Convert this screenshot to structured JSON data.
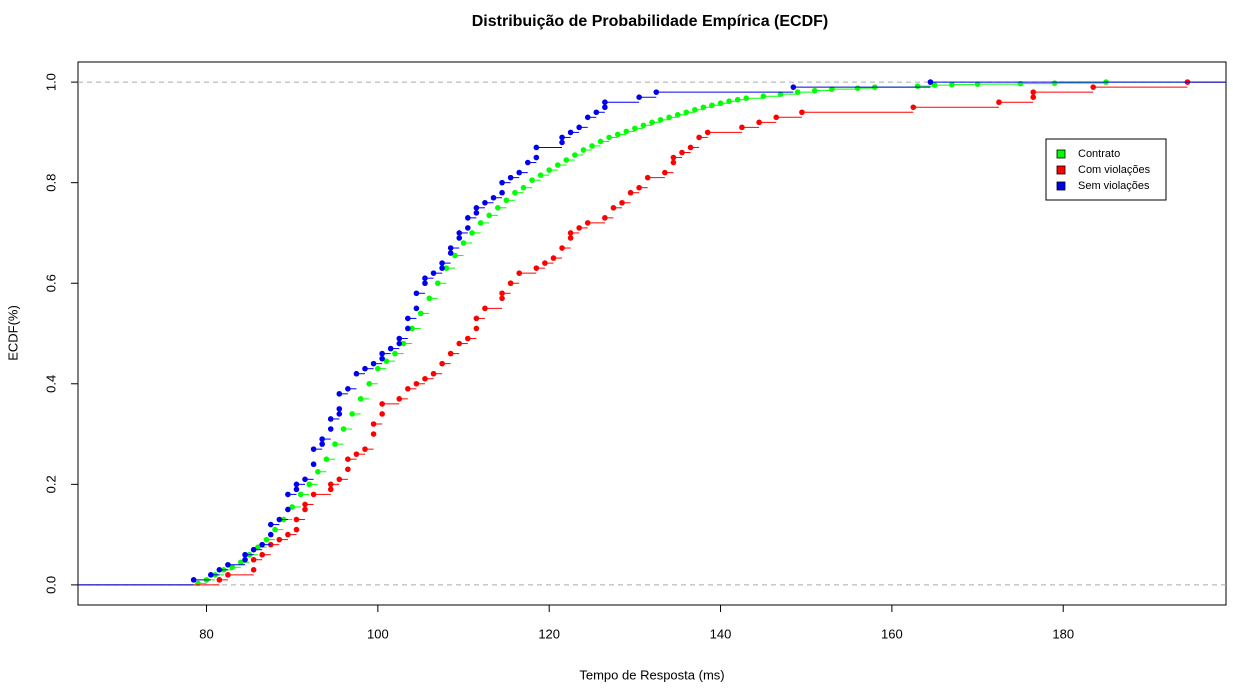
{
  "chart_data": {
    "type": "ecdf",
    "title": "Distribuição de Probabilidade Empírica (ECDF)",
    "x_label": "Tempo de Resposta (ms)",
    "y_label": "ECDF(%)",
    "xlim": [
      65,
      199
    ],
    "ylim": [
      -0.04,
      1.04
    ],
    "xticks": [
      80,
      100,
      120,
      140,
      160,
      180
    ],
    "yticks": [
      {
        "value": 0,
        "label": "0.0"
      },
      {
        "value": 0.2,
        "label": "0.2"
      },
      {
        "value": 0.4,
        "label": "0.4"
      },
      {
        "value": 0.6,
        "label": "0.6"
      },
      {
        "value": 0.8,
        "label": "0.8"
      },
      {
        "value": 1,
        "label": "1.0"
      }
    ],
    "series": [
      {
        "name": "Contrato",
        "color": "#00ff00",
        "x": [
          79,
          80,
          81,
          82,
          83,
          84,
          85,
          86,
          87,
          88,
          89,
          90,
          91,
          92,
          93,
          94,
          95,
          96,
          97,
          98,
          99,
          100,
          101,
          102,
          103,
          104,
          105,
          106,
          107,
          108,
          109,
          110,
          111,
          112,
          113,
          114,
          115,
          116,
          117,
          118,
          119,
          120,
          121,
          122,
          123,
          124,
          125,
          126,
          127,
          128,
          129,
          130,
          131,
          132,
          133,
          134,
          135,
          136,
          137,
          138,
          139,
          140,
          141,
          142,
          143,
          145,
          147,
          149,
          151,
          153,
          156,
          158,
          163,
          165,
          167,
          170,
          175,
          179,
          185
        ],
        "values": [
          0.003,
          0.01,
          0.02,
          0.03,
          0.035,
          0.045,
          0.06,
          0.075,
          0.09,
          0.11,
          0.13,
          0.155,
          0.18,
          0.2,
          0.225,
          0.25,
          0.28,
          0.31,
          0.34,
          0.37,
          0.4,
          0.43,
          0.445,
          0.46,
          0.48,
          0.51,
          0.54,
          0.57,
          0.6,
          0.63,
          0.655,
          0.68,
          0.7,
          0.72,
          0.735,
          0.75,
          0.765,
          0.78,
          0.79,
          0.805,
          0.815,
          0.825,
          0.835,
          0.845,
          0.855,
          0.865,
          0.873,
          0.882,
          0.89,
          0.896,
          0.902,
          0.908,
          0.914,
          0.92,
          0.925,
          0.93,
          0.935,
          0.94,
          0.945,
          0.95,
          0.954,
          0.958,
          0.962,
          0.965,
          0.968,
          0.972,
          0.976,
          0.98,
          0.983,
          0.986,
          0.988,
          0.99,
          0.992,
          0.994,
          0.995,
          0.996,
          0.997,
          0.998,
          1
        ]
      },
      {
        "name": "Com violações",
        "color": "#ff0000",
        "x": [
          81.5,
          82.5,
          85.5,
          85.5,
          86.5,
          87.5,
          88.5,
          89.5,
          90.5,
          90.5,
          91.5,
          91.5,
          92.5,
          94.5,
          94.5,
          95.5,
          96.5,
          96.5,
          97.5,
          98.5,
          99.5,
          99.5,
          100.5,
          100.5,
          102.5,
          103.5,
          104.5,
          105.5,
          106.5,
          107.5,
          108.5,
          109.5,
          110.5,
          111.5,
          111.5,
          112.5,
          114.5,
          114.5,
          115.5,
          116.5,
          118.5,
          119.5,
          120.5,
          121.5,
          122.5,
          122.5,
          123.5,
          124.5,
          126.5,
          127.5,
          128.5,
          129.5,
          130.5,
          131.5,
          133.5,
          134.5,
          134.5,
          135.5,
          136.5,
          137.5,
          138.5,
          142.5,
          144.5,
          146.5,
          149.5,
          162.5,
          172.5,
          176.5,
          176.5,
          183.5,
          194.5
        ],
        "values": [
          0.01,
          0.02,
          0.03,
          0.05,
          0.06,
          0.08,
          0.09,
          0.1,
          0.11,
          0.13,
          0.15,
          0.16,
          0.18,
          0.19,
          0.2,
          0.21,
          0.23,
          0.25,
          0.26,
          0.27,
          0.3,
          0.32,
          0.34,
          0.36,
          0.37,
          0.39,
          0.4,
          0.41,
          0.42,
          0.44,
          0.46,
          0.48,
          0.49,
          0.51,
          0.53,
          0.55,
          0.57,
          0.58,
          0.6,
          0.62,
          0.63,
          0.64,
          0.65,
          0.67,
          0.69,
          0.7,
          0.71,
          0.72,
          0.73,
          0.75,
          0.76,
          0.78,
          0.79,
          0.81,
          0.82,
          0.84,
          0.85,
          0.86,
          0.87,
          0.89,
          0.9,
          0.91,
          0.92,
          0.93,
          0.94,
          0.95,
          0.96,
          0.97,
          0.98,
          0.99,
          1
        ]
      },
      {
        "name": "Sem violações",
        "color": "#0000ee",
        "x": [
          78.5,
          80.5,
          81.5,
          82.5,
          84.5,
          84.5,
          85.5,
          86.5,
          87.5,
          87.5,
          88.5,
          89.5,
          89.5,
          90.5,
          90.5,
          91.5,
          92.5,
          92.5,
          93.5,
          93.5,
          94.5,
          94.5,
          95.5,
          95.5,
          95.5,
          96.5,
          97.5,
          98.5,
          99.5,
          100.5,
          100.5,
          101.5,
          102.5,
          102.5,
          103.5,
          103.5,
          104.5,
          104.5,
          105.5,
          105.5,
          106.5,
          107.5,
          107.5,
          108.5,
          108.5,
          109.5,
          109.5,
          110.5,
          110.5,
          111.5,
          111.5,
          112.5,
          113.5,
          114.5,
          114.5,
          115.5,
          116.5,
          117.5,
          118.5,
          118.5,
          121.5,
          121.5,
          122.5,
          123.5,
          124.5,
          125.5,
          126.5,
          126.5,
          130.5,
          132.5,
          148.5,
          164.5
        ],
        "values": [
          0.01,
          0.02,
          0.03,
          0.04,
          0.05,
          0.06,
          0.07,
          0.08,
          0.1,
          0.12,
          0.13,
          0.15,
          0.18,
          0.19,
          0.2,
          0.21,
          0.24,
          0.27,
          0.28,
          0.29,
          0.31,
          0.33,
          0.34,
          0.35,
          0.38,
          0.39,
          0.42,
          0.43,
          0.44,
          0.45,
          0.46,
          0.47,
          0.48,
          0.49,
          0.51,
          0.53,
          0.55,
          0.58,
          0.6,
          0.61,
          0.62,
          0.63,
          0.64,
          0.66,
          0.67,
          0.69,
          0.7,
          0.71,
          0.73,
          0.74,
          0.75,
          0.76,
          0.77,
          0.78,
          0.8,
          0.81,
          0.82,
          0.84,
          0.85,
          0.87,
          0.88,
          0.89,
          0.9,
          0.91,
          0.93,
          0.94,
          0.95,
          0.96,
          0.97,
          0.98,
          0.99,
          1
        ]
      }
    ]
  }
}
